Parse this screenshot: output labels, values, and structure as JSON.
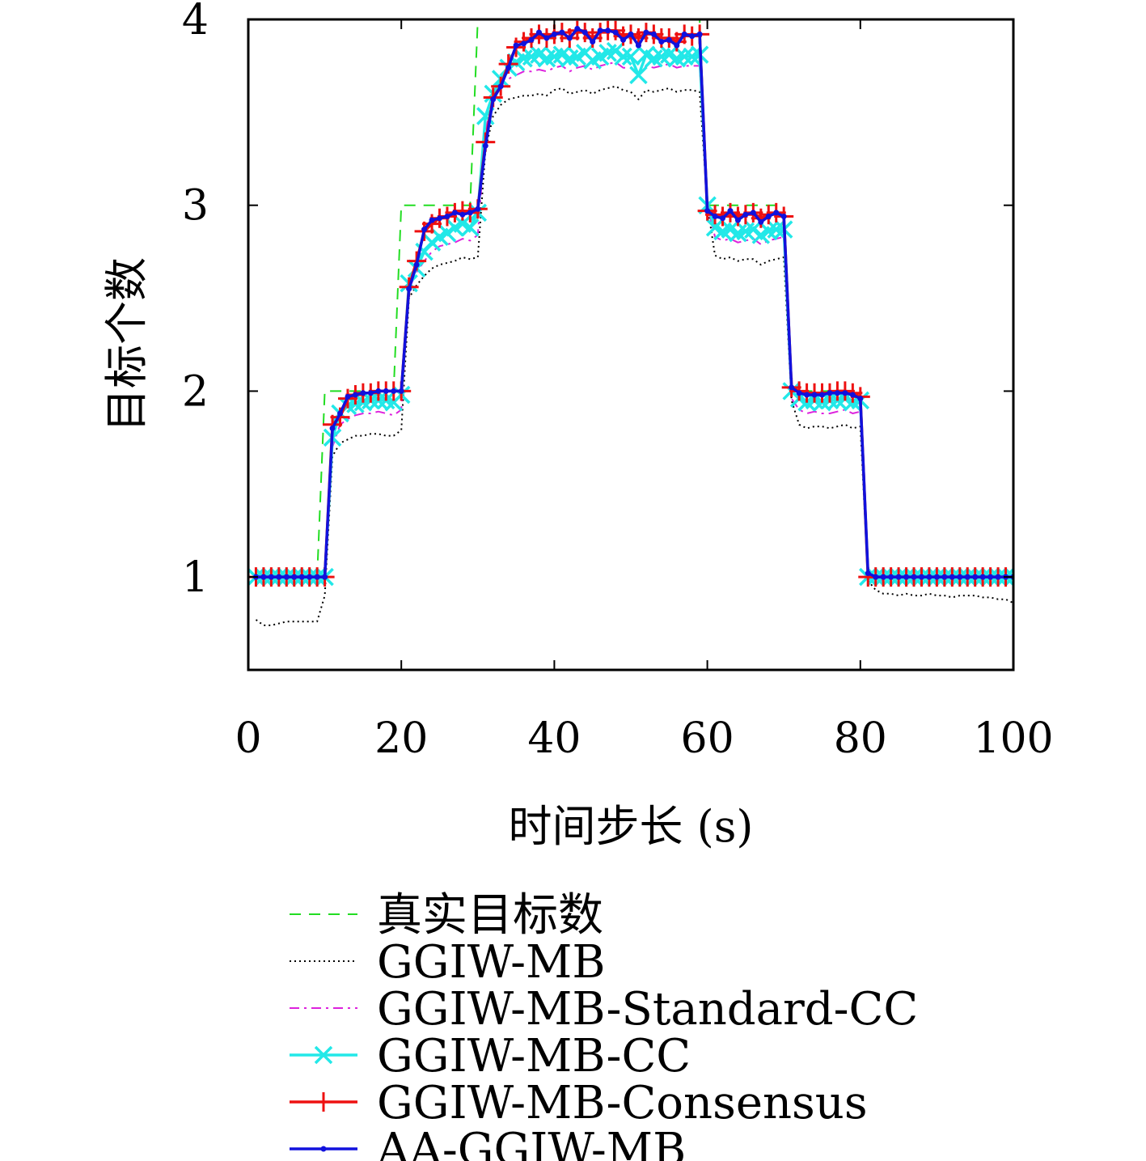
{
  "chart_data": {
    "type": "line",
    "xlabel": "时间步长 (s)",
    "ylabel": "目标个数",
    "xlim": [
      0,
      100
    ],
    "ylim": [
      0.5,
      4
    ],
    "xticks": [
      0,
      20,
      40,
      60,
      80,
      100
    ],
    "yticks": [
      1,
      2,
      3,
      4
    ],
    "grid": false,
    "legend_position": "bottom",
    "series": [
      {
        "name": "真实目标数",
        "color": "#22dd22",
        "style": "dashed",
        "marker": "none",
        "x": [
          1,
          9,
          10,
          19,
          20,
          29,
          30,
          59,
          60,
          70,
          71,
          80,
          81,
          100
        ],
        "y": [
          1,
          1,
          2,
          2,
          3,
          3,
          4,
          4,
          3,
          3,
          2,
          2,
          1,
          1
        ]
      },
      {
        "name": "GGIW-MB",
        "color": "#000000",
        "style": "dotted",
        "marker": "none",
        "x": [
          1,
          2,
          3,
          4,
          5,
          6,
          7,
          8,
          9,
          10,
          11,
          12,
          13,
          14,
          15,
          16,
          17,
          18,
          19,
          20,
          21,
          22,
          23,
          24,
          25,
          26,
          27,
          28,
          29,
          30,
          31,
          32,
          33,
          34,
          35,
          36,
          37,
          38,
          39,
          40,
          41,
          42,
          43,
          44,
          45,
          46,
          47,
          48,
          49,
          50,
          51,
          52,
          53,
          54,
          55,
          56,
          57,
          58,
          59,
          60,
          61,
          62,
          63,
          64,
          65,
          66,
          67,
          68,
          69,
          70,
          71,
          72,
          73,
          74,
          75,
          76,
          77,
          78,
          79,
          80,
          81,
          82,
          83,
          84,
          85,
          86,
          87,
          88,
          89,
          90,
          91,
          92,
          93,
          94,
          95,
          96,
          97,
          98,
          99,
          100
        ],
        "y": [
          0.77,
          0.74,
          0.74,
          0.75,
          0.76,
          0.76,
          0.76,
          0.76,
          0.76,
          0.9,
          1.65,
          1.72,
          1.74,
          1.76,
          1.76,
          1.77,
          1.77,
          1.76,
          1.76,
          1.79,
          2.5,
          2.57,
          2.62,
          2.66,
          2.68,
          2.69,
          2.7,
          2.72,
          2.71,
          2.72,
          3.3,
          3.48,
          3.54,
          3.57,
          3.58,
          3.59,
          3.59,
          3.6,
          3.59,
          3.62,
          3.63,
          3.6,
          3.61,
          3.62,
          3.6,
          3.62,
          3.63,
          3.64,
          3.62,
          3.61,
          3.57,
          3.62,
          3.61,
          3.62,
          3.63,
          3.61,
          3.62,
          3.62,
          3.61,
          3.0,
          2.73,
          2.71,
          2.72,
          2.7,
          2.71,
          2.71,
          2.68,
          2.7,
          2.71,
          2.72,
          1.95,
          1.82,
          1.8,
          1.81,
          1.81,
          1.8,
          1.81,
          1.82,
          1.8,
          1.81,
          0.98,
          0.93,
          0.91,
          0.91,
          0.9,
          0.91,
          0.9,
          0.9,
          0.91,
          0.9,
          0.9,
          0.89,
          0.9,
          0.9,
          0.9,
          0.89,
          0.89,
          0.88,
          0.88,
          0.86
        ]
      },
      {
        "name": "GGIW-MB-Standard-CC",
        "color": "#dd22dd",
        "style": "dashdot",
        "marker": "none",
        "x": [
          1,
          2,
          3,
          4,
          5,
          6,
          7,
          8,
          9,
          10,
          11,
          12,
          13,
          14,
          15,
          16,
          17,
          18,
          19,
          20,
          21,
          22,
          23,
          24,
          25,
          26,
          27,
          28,
          29,
          30,
          31,
          32,
          33,
          34,
          35,
          36,
          37,
          38,
          39,
          40,
          41,
          42,
          43,
          44,
          45,
          46,
          47,
          48,
          49,
          50,
          51,
          52,
          53,
          54,
          55,
          56,
          57,
          58,
          59,
          60,
          61,
          62,
          63,
          64,
          65,
          66,
          67,
          68,
          69,
          70,
          71,
          72,
          73,
          74,
          75,
          76,
          77,
          78,
          79,
          80,
          81,
          82,
          83,
          84,
          85,
          86,
          87,
          88,
          89,
          90,
          91,
          92,
          93,
          94,
          95,
          96,
          97,
          98,
          99,
          100
        ],
        "y": [
          1,
          1,
          0.99,
          1,
          1,
          0.99,
          1,
          1,
          1,
          1,
          1.7,
          1.82,
          1.85,
          1.87,
          1.88,
          1.88,
          1.89,
          1.88,
          1.87,
          1.9,
          2.55,
          2.64,
          2.7,
          2.75,
          2.78,
          2.79,
          2.8,
          2.82,
          2.81,
          2.84,
          3.4,
          3.58,
          3.64,
          3.68,
          3.7,
          3.72,
          3.72,
          3.73,
          3.72,
          3.74,
          3.75,
          3.72,
          3.74,
          3.75,
          3.73,
          3.75,
          3.76,
          3.77,
          3.74,
          3.74,
          3.7,
          3.75,
          3.74,
          3.75,
          3.76,
          3.74,
          3.75,
          3.75,
          3.75,
          3.0,
          2.83,
          2.81,
          2.82,
          2.8,
          2.81,
          2.82,
          2.79,
          2.81,
          2.82,
          2.83,
          1.96,
          1.9,
          1.88,
          1.89,
          1.88,
          1.88,
          1.89,
          1.9,
          1.88,
          1.89,
          1.0,
          0.99,
          0.98,
          0.99,
          0.98,
          0.99,
          0.98,
          0.99,
          0.99,
          0.98,
          0.99,
          0.98,
          0.99,
          0.99,
          0.99,
          0.98,
          0.99,
          0.99,
          0.98,
          0.99
        ]
      },
      {
        "name": "GGIW-MB-CC",
        "color": "#22e8e8",
        "style": "solid",
        "marker": "x",
        "x": [
          1,
          2,
          3,
          4,
          5,
          6,
          7,
          8,
          9,
          10,
          11,
          12,
          13,
          14,
          15,
          16,
          17,
          18,
          19,
          20,
          21,
          22,
          23,
          24,
          25,
          26,
          27,
          28,
          29,
          30,
          31,
          32,
          33,
          34,
          35,
          36,
          37,
          38,
          39,
          40,
          41,
          42,
          43,
          44,
          45,
          46,
          47,
          48,
          49,
          50,
          51,
          52,
          53,
          54,
          55,
          56,
          57,
          58,
          59,
          60,
          61,
          62,
          63,
          64,
          65,
          66,
          67,
          68,
          69,
          70,
          71,
          72,
          73,
          74,
          75,
          76,
          77,
          78,
          79,
          80,
          81,
          82,
          83,
          84,
          85,
          86,
          87,
          88,
          89,
          90,
          91,
          92,
          93,
          94,
          95,
          96,
          97,
          98,
          99,
          100
        ],
        "y": [
          1,
          1,
          1,
          1,
          1,
          1,
          1,
          1,
          1,
          1,
          1.75,
          1.88,
          1.92,
          1.93,
          1.94,
          1.95,
          1.95,
          1.95,
          1.94,
          1.98,
          2.58,
          2.66,
          2.75,
          2.8,
          2.83,
          2.85,
          2.88,
          2.9,
          2.88,
          2.96,
          3.48,
          3.6,
          3.68,
          3.74,
          3.77,
          3.79,
          3.8,
          3.81,
          3.79,
          3.8,
          3.81,
          3.79,
          3.8,
          3.82,
          3.78,
          3.8,
          3.82,
          3.83,
          3.8,
          3.8,
          3.7,
          3.81,
          3.79,
          3.8,
          3.81,
          3.79,
          3.8,
          3.8,
          3.81,
          3.0,
          2.88,
          2.86,
          2.87,
          2.85,
          2.86,
          2.87,
          2.84,
          2.86,
          2.87,
          2.87,
          2.0,
          1.96,
          1.94,
          1.95,
          1.94,
          1.95,
          1.95,
          1.96,
          1.94,
          1.95,
          1.0,
          1,
          1,
          1,
          1,
          1,
          1,
          1,
          1,
          1,
          1,
          1,
          1,
          1,
          1,
          1,
          1,
          1,
          1,
          1
        ]
      },
      {
        "name": "GGIW-MB-Consensus",
        "color": "#ee1111",
        "style": "solid",
        "marker": "plus",
        "x": [
          1,
          2,
          3,
          4,
          5,
          6,
          7,
          8,
          9,
          10,
          11,
          12,
          13,
          14,
          15,
          16,
          17,
          18,
          19,
          20,
          21,
          22,
          23,
          24,
          25,
          26,
          27,
          28,
          29,
          30,
          31,
          32,
          33,
          34,
          35,
          36,
          37,
          38,
          39,
          40,
          41,
          42,
          43,
          44,
          45,
          46,
          47,
          48,
          49,
          50,
          51,
          52,
          53,
          54,
          55,
          56,
          57,
          58,
          59,
          60,
          61,
          62,
          63,
          64,
          65,
          66,
          67,
          68,
          69,
          70,
          71,
          72,
          73,
          74,
          75,
          76,
          77,
          78,
          79,
          80,
          81,
          82,
          83,
          84,
          85,
          86,
          87,
          88,
          89,
          90,
          91,
          92,
          93,
          94,
          95,
          96,
          97,
          98,
          99,
          100
        ],
        "y": [
          1,
          1,
          1,
          1,
          1,
          1,
          1,
          1,
          1,
          1,
          1.82,
          1.86,
          1.96,
          1.98,
          1.99,
          1.99,
          2.0,
          2.0,
          2.0,
          2.0,
          2.56,
          2.7,
          2.86,
          2.9,
          2.93,
          2.94,
          2.96,
          2.97,
          2.96,
          2.98,
          3.34,
          3.58,
          3.64,
          3.76,
          3.85,
          3.88,
          3.9,
          3.92,
          3.9,
          3.92,
          3.93,
          3.9,
          3.94,
          3.93,
          3.9,
          3.93,
          3.94,
          3.94,
          3.91,
          3.92,
          3.9,
          3.93,
          3.92,
          3.9,
          3.9,
          3.88,
          3.92,
          3.91,
          3.92,
          2.97,
          2.95,
          2.94,
          2.96,
          2.94,
          2.95,
          2.96,
          2.93,
          2.95,
          2.96,
          2.94,
          2.02,
          2.0,
          1.99,
          1.99,
          1.99,
          1.99,
          2.0,
          2.0,
          1.99,
          1.97,
          1.0,
          1,
          1,
          1,
          1,
          1,
          1,
          1,
          1,
          1,
          1,
          1,
          1,
          1,
          1,
          1,
          1,
          1,
          1,
          1
        ]
      },
      {
        "name": "AA-GGIW-MB",
        "color": "#1111dd",
        "style": "solid",
        "marker": "dot",
        "x": [
          1,
          2,
          3,
          4,
          5,
          6,
          7,
          8,
          9,
          10,
          11,
          12,
          13,
          14,
          15,
          16,
          17,
          18,
          19,
          20,
          21,
          22,
          23,
          24,
          25,
          26,
          27,
          28,
          29,
          30,
          31,
          32,
          33,
          34,
          35,
          36,
          37,
          38,
          39,
          40,
          41,
          42,
          43,
          44,
          45,
          46,
          47,
          48,
          49,
          50,
          51,
          52,
          53,
          54,
          55,
          56,
          57,
          58,
          59,
          60,
          61,
          62,
          63,
          64,
          65,
          66,
          67,
          68,
          69,
          70,
          71,
          72,
          73,
          74,
          75,
          76,
          77,
          78,
          79,
          80,
          81,
          82,
          83,
          84,
          85,
          86,
          87,
          88,
          89,
          90,
          91,
          92,
          93,
          94,
          95,
          96,
          97,
          98,
          99,
          100
        ],
        "y": [
          1,
          1,
          1,
          1,
          1,
          1,
          1,
          1,
          1,
          1,
          1.8,
          1.88,
          1.97,
          1.98,
          1.99,
          1.99,
          2.0,
          2.0,
          2.0,
          2.0,
          2.55,
          2.68,
          2.87,
          2.92,
          2.93,
          2.94,
          2.96,
          2.95,
          2.96,
          2.98,
          3.32,
          3.57,
          3.64,
          3.74,
          3.86,
          3.87,
          3.89,
          3.93,
          3.9,
          3.92,
          3.93,
          3.9,
          3.95,
          3.93,
          3.88,
          3.94,
          3.94,
          3.93,
          3.89,
          3.92,
          3.86,
          3.93,
          3.92,
          3.88,
          3.89,
          3.86,
          3.92,
          3.91,
          3.92,
          2.97,
          2.94,
          2.93,
          2.97,
          2.92,
          2.95,
          2.96,
          2.91,
          2.94,
          2.96,
          2.94,
          2.02,
          1.99,
          1.98,
          1.98,
          1.98,
          1.99,
          1.99,
          1.99,
          1.98,
          1.96,
          1.02,
          1,
          1,
          1,
          1,
          1,
          1,
          1,
          1,
          1,
          1,
          1,
          1,
          1,
          1,
          1,
          1,
          1,
          1,
          1
        ]
      }
    ]
  }
}
